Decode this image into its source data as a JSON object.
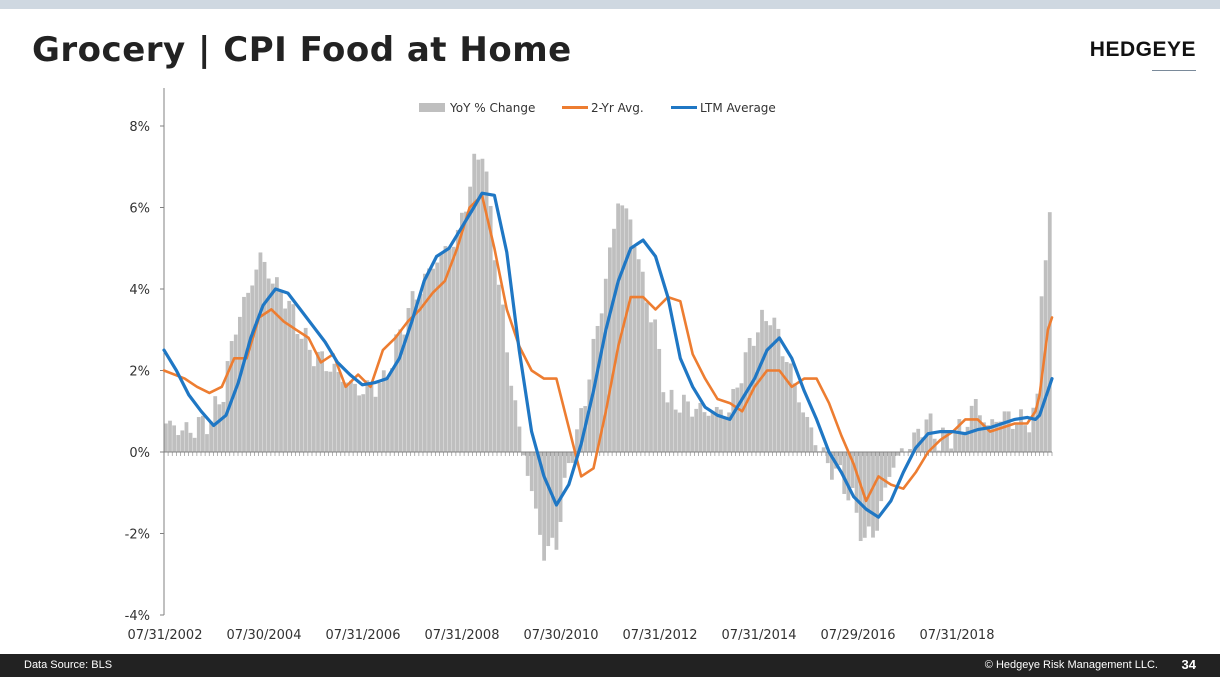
{
  "header": {
    "title": "Grocery | CPI Food at Home",
    "brand": "HEDGEYE"
  },
  "footer": {
    "source": "Data Source: BLS",
    "copyright": "© Hedgeye Risk Management LLC.",
    "page_number": "34"
  },
  "colors": {
    "bars": "#bfbfbf",
    "two_yr": "#ed7d31",
    "ltm": "#1f77c4",
    "negative_tick": "#ff0000"
  },
  "chart_data": {
    "type": "bar+line",
    "x_tick_labels": [
      "07/31/2002",
      "07/30/2004",
      "07/31/2006",
      "07/31/2008",
      "07/30/2010",
      "07/31/2012",
      "07/31/2014",
      "07/29/2016",
      "07/31/2018"
    ],
    "y_tick_labels": [
      "8%",
      "6%",
      "4%",
      "2%",
      "0%",
      "-2%",
      "-4%"
    ],
    "ylim": [
      -4,
      9
    ],
    "legend": [
      "YoY % Change",
      "2-Yr Avg.",
      "LTM Average"
    ],
    "legend_position": "top-center",
    "grid": false,
    "yoy_anchors": [
      {
        "x": "2002-07",
        "y": 0.7
      },
      {
        "x": "2002-12",
        "y": 0.5
      },
      {
        "x": "2003-06",
        "y": 0.8
      },
      {
        "x": "2003-09",
        "y": 1.5
      },
      {
        "x": "2003-12",
        "y": 3.1
      },
      {
        "x": "2004-03",
        "y": 3.9
      },
      {
        "x": "2004-06",
        "y": 4.8
      },
      {
        "x": "2004-09",
        "y": 4.2
      },
      {
        "x": "2004-12",
        "y": 3.8
      },
      {
        "x": "2005-06",
        "y": 2.5
      },
      {
        "x": "2005-12",
        "y": 2.0
      },
      {
        "x": "2006-06",
        "y": 1.5
      },
      {
        "x": "2006-12",
        "y": 1.7
      },
      {
        "x": "2007-06",
        "y": 3.5
      },
      {
        "x": "2007-12",
        "y": 4.6
      },
      {
        "x": "2008-06",
        "y": 5.3
      },
      {
        "x": "2008-10",
        "y": 7.0
      },
      {
        "x": "2008-12",
        "y": 7.5
      },
      {
        "x": "2009-03",
        "y": 5.0
      },
      {
        "x": "2009-06",
        "y": 2.5
      },
      {
        "x": "2009-09",
        "y": 0.5
      },
      {
        "x": "2009-12",
        "y": -1.0
      },
      {
        "x": "2010-03",
        "y": -2.5
      },
      {
        "x": "2010-06",
        "y": -2.2
      },
      {
        "x": "2010-09",
        "y": -0.3
      },
      {
        "x": "2010-12",
        "y": 0.8
      },
      {
        "x": "2011-03",
        "y": 2.5
      },
      {
        "x": "2011-06",
        "y": 4.2
      },
      {
        "x": "2011-09",
        "y": 6.2
      },
      {
        "x": "2011-12",
        "y": 5.7
      },
      {
        "x": "2012-03",
        "y": 4.2
      },
      {
        "x": "2012-06",
        "y": 3.0
      },
      {
        "x": "2012-09",
        "y": 1.2
      },
      {
        "x": "2012-12",
        "y": 1.2
      },
      {
        "x": "2013-06",
        "y": 1.0
      },
      {
        "x": "2013-12",
        "y": 1.0
      },
      {
        "x": "2014-06",
        "y": 2.9
      },
      {
        "x": "2014-10",
        "y": 3.4
      },
      {
        "x": "2015-03",
        "y": 2.0
      },
      {
        "x": "2015-06",
        "y": 1.0
      },
      {
        "x": "2015-09",
        "y": 0.3
      },
      {
        "x": "2015-12",
        "y": -0.3
      },
      {
        "x": "2016-03",
        "y": -0.6
      },
      {
        "x": "2016-06",
        "y": -1.2
      },
      {
        "x": "2016-09",
        "y": -2.2
      },
      {
        "x": "2016-12",
        "y": -1.8
      },
      {
        "x": "2017-03",
        "y": -0.5
      },
      {
        "x": "2017-06",
        "y": 0.0
      },
      {
        "x": "2017-09",
        "y": 0.3
      },
      {
        "x": "2017-12",
        "y": 0.8
      },
      {
        "x": "2018-03",
        "y": 0.3
      },
      {
        "x": "2018-06",
        "y": 0.4
      },
      {
        "x": "2018-09",
        "y": 0.6
      },
      {
        "x": "2018-12",
        "y": 1.2
      },
      {
        "x": "2019-03",
        "y": 0.6
      },
      {
        "x": "2019-06",
        "y": 0.9
      },
      {
        "x": "2019-09",
        "y": 0.8
      },
      {
        "x": "2019-12",
        "y": 0.7
      },
      {
        "x": "2020-02",
        "y": 0.9
      },
      {
        "x": "2020-03",
        "y": 1.2
      },
      {
        "x": "2020-04",
        "y": 4.1
      },
      {
        "x": "2020-05",
        "y": 4.8
      },
      {
        "x": "2020-06",
        "y": 5.6
      }
    ],
    "series": [
      {
        "name": "2-Yr Avg.",
        "points": [
          {
            "x": "2002-07",
            "y": 2.0
          },
          {
            "x": "2002-12",
            "y": 1.8
          },
          {
            "x": "2003-03",
            "y": 1.6
          },
          {
            "x": "2003-06",
            "y": 1.45
          },
          {
            "x": "2003-09",
            "y": 1.6
          },
          {
            "x": "2003-12",
            "y": 2.3
          },
          {
            "x": "2004-03",
            "y": 2.3
          },
          {
            "x": "2004-06",
            "y": 3.3
          },
          {
            "x": "2004-09",
            "y": 3.5
          },
          {
            "x": "2004-12",
            "y": 3.2
          },
          {
            "x": "2005-03",
            "y": 3.0
          },
          {
            "x": "2005-06",
            "y": 2.8
          },
          {
            "x": "2005-09",
            "y": 2.2
          },
          {
            "x": "2005-12",
            "y": 2.4
          },
          {
            "x": "2006-03",
            "y": 1.6
          },
          {
            "x": "2006-06",
            "y": 1.9
          },
          {
            "x": "2006-09",
            "y": 1.6
          },
          {
            "x": "2006-12",
            "y": 2.5
          },
          {
            "x": "2007-03",
            "y": 2.8
          },
          {
            "x": "2007-06",
            "y": 3.2
          },
          {
            "x": "2007-09",
            "y": 3.5
          },
          {
            "x": "2007-12",
            "y": 3.9
          },
          {
            "x": "2008-03",
            "y": 4.2
          },
          {
            "x": "2008-06",
            "y": 5.0
          },
          {
            "x": "2008-09",
            "y": 6.0
          },
          {
            "x": "2008-12",
            "y": 6.3
          },
          {
            "x": "2009-03",
            "y": 5.0
          },
          {
            "x": "2009-06",
            "y": 3.5
          },
          {
            "x": "2009-09",
            "y": 2.6
          },
          {
            "x": "2009-12",
            "y": 2.0
          },
          {
            "x": "2010-03",
            "y": 1.8
          },
          {
            "x": "2010-06",
            "y": 1.8
          },
          {
            "x": "2010-09",
            "y": 0.6
          },
          {
            "x": "2010-12",
            "y": -0.6
          },
          {
            "x": "2011-03",
            "y": -0.4
          },
          {
            "x": "2011-06",
            "y": 1.0
          },
          {
            "x": "2011-09",
            "y": 2.6
          },
          {
            "x": "2011-12",
            "y": 3.8
          },
          {
            "x": "2012-03",
            "y": 3.8
          },
          {
            "x": "2012-06",
            "y": 3.5
          },
          {
            "x": "2012-09",
            "y": 3.8
          },
          {
            "x": "2012-12",
            "y": 3.7
          },
          {
            "x": "2013-03",
            "y": 2.4
          },
          {
            "x": "2013-06",
            "y": 1.8
          },
          {
            "x": "2013-09",
            "y": 1.3
          },
          {
            "x": "2013-12",
            "y": 1.2
          },
          {
            "x": "2014-03",
            "y": 1.0
          },
          {
            "x": "2014-06",
            "y": 1.6
          },
          {
            "x": "2014-09",
            "y": 2.0
          },
          {
            "x": "2014-12",
            "y": 2.0
          },
          {
            "x": "2015-03",
            "y": 1.6
          },
          {
            "x": "2015-06",
            "y": 1.8
          },
          {
            "x": "2015-09",
            "y": 1.8
          },
          {
            "x": "2015-12",
            "y": 1.2
          },
          {
            "x": "2016-03",
            "y": 0.4
          },
          {
            "x": "2016-06",
            "y": -0.3
          },
          {
            "x": "2016-09",
            "y": -1.2
          },
          {
            "x": "2016-12",
            "y": -0.6
          },
          {
            "x": "2017-03",
            "y": -0.8
          },
          {
            "x": "2017-06",
            "y": -0.9
          },
          {
            "x": "2017-09",
            "y": -0.5
          },
          {
            "x": "2017-12",
            "y": 0.0
          },
          {
            "x": "2018-03",
            "y": 0.3
          },
          {
            "x": "2018-06",
            "y": 0.5
          },
          {
            "x": "2018-09",
            "y": 0.8
          },
          {
            "x": "2018-12",
            "y": 0.8
          },
          {
            "x": "2019-03",
            "y": 0.5
          },
          {
            "x": "2019-06",
            "y": 0.6
          },
          {
            "x": "2019-09",
            "y": 0.7
          },
          {
            "x": "2019-12",
            "y": 0.7
          },
          {
            "x": "2020-02",
            "y": 1.0
          },
          {
            "x": "2020-03",
            "y": 1.4
          },
          {
            "x": "2020-04",
            "y": 2.2
          },
          {
            "x": "2020-05",
            "y": 3.0
          },
          {
            "x": "2020-06",
            "y": 3.3
          }
        ]
      },
      {
        "name": "LTM Average",
        "points": [
          {
            "x": "2002-07",
            "y": 2.5
          },
          {
            "x": "2002-10",
            "y": 2.0
          },
          {
            "x": "2003-01",
            "y": 1.4
          },
          {
            "x": "2003-04",
            "y": 1.0
          },
          {
            "x": "2003-07",
            "y": 0.65
          },
          {
            "x": "2003-10",
            "y": 0.9
          },
          {
            "x": "2004-01",
            "y": 1.7
          },
          {
            "x": "2004-04",
            "y": 2.8
          },
          {
            "x": "2004-07",
            "y": 3.6
          },
          {
            "x": "2004-10",
            "y": 4.0
          },
          {
            "x": "2005-01",
            "y": 3.9
          },
          {
            "x": "2005-04",
            "y": 3.5
          },
          {
            "x": "2005-07",
            "y": 3.1
          },
          {
            "x": "2005-10",
            "y": 2.7
          },
          {
            "x": "2006-01",
            "y": 2.2
          },
          {
            "x": "2006-04",
            "y": 1.9
          },
          {
            "x": "2006-07",
            "y": 1.65
          },
          {
            "x": "2006-10",
            "y": 1.7
          },
          {
            "x": "2007-01",
            "y": 1.8
          },
          {
            "x": "2007-04",
            "y": 2.3
          },
          {
            "x": "2007-07",
            "y": 3.2
          },
          {
            "x": "2007-10",
            "y": 4.2
          },
          {
            "x": "2008-01",
            "y": 4.8
          },
          {
            "x": "2008-04",
            "y": 5.0
          },
          {
            "x": "2008-07",
            "y": 5.5
          },
          {
            "x": "2008-10",
            "y": 6.0
          },
          {
            "x": "2008-12",
            "y": 6.35
          },
          {
            "x": "2009-03",
            "y": 6.3
          },
          {
            "x": "2009-06",
            "y": 4.9
          },
          {
            "x": "2009-09",
            "y": 2.5
          },
          {
            "x": "2009-12",
            "y": 0.5
          },
          {
            "x": "2010-03",
            "y": -0.6
          },
          {
            "x": "2010-06",
            "y": -1.3
          },
          {
            "x": "2010-09",
            "y": -0.8
          },
          {
            "x": "2010-12",
            "y": 0.2
          },
          {
            "x": "2011-03",
            "y": 1.5
          },
          {
            "x": "2011-06",
            "y": 3.0
          },
          {
            "x": "2011-09",
            "y": 4.2
          },
          {
            "x": "2011-12",
            "y": 5.0
          },
          {
            "x": "2012-03",
            "y": 5.2
          },
          {
            "x": "2012-06",
            "y": 4.8
          },
          {
            "x": "2012-09",
            "y": 3.8
          },
          {
            "x": "2012-12",
            "y": 2.3
          },
          {
            "x": "2013-03",
            "y": 1.6
          },
          {
            "x": "2013-06",
            "y": 1.1
          },
          {
            "x": "2013-09",
            "y": 0.9
          },
          {
            "x": "2013-12",
            "y": 0.8
          },
          {
            "x": "2014-03",
            "y": 1.3
          },
          {
            "x": "2014-06",
            "y": 1.8
          },
          {
            "x": "2014-09",
            "y": 2.5
          },
          {
            "x": "2014-12",
            "y": 2.8
          },
          {
            "x": "2015-03",
            "y": 2.3
          },
          {
            "x": "2015-06",
            "y": 1.5
          },
          {
            "x": "2015-09",
            "y": 0.8
          },
          {
            "x": "2015-12",
            "y": 0.0
          },
          {
            "x": "2016-03",
            "y": -0.5
          },
          {
            "x": "2016-06",
            "y": -1.1
          },
          {
            "x": "2016-09",
            "y": -1.4
          },
          {
            "x": "2016-12",
            "y": -1.6
          },
          {
            "x": "2017-03",
            "y": -1.2
          },
          {
            "x": "2017-06",
            "y": -0.5
          },
          {
            "x": "2017-09",
            "y": 0.1
          },
          {
            "x": "2017-12",
            "y": 0.45
          },
          {
            "x": "2018-03",
            "y": 0.5
          },
          {
            "x": "2018-06",
            "y": 0.5
          },
          {
            "x": "2018-09",
            "y": 0.45
          },
          {
            "x": "2018-12",
            "y": 0.55
          },
          {
            "x": "2019-03",
            "y": 0.6
          },
          {
            "x": "2019-06",
            "y": 0.7
          },
          {
            "x": "2019-09",
            "y": 0.8
          },
          {
            "x": "2019-12",
            "y": 0.85
          },
          {
            "x": "2020-02",
            "y": 0.8
          },
          {
            "x": "2020-03",
            "y": 0.9
          },
          {
            "x": "2020-04",
            "y": 1.2
          },
          {
            "x": "2020-05",
            "y": 1.5
          },
          {
            "x": "2020-06",
            "y": 1.8
          }
        ]
      }
    ]
  }
}
